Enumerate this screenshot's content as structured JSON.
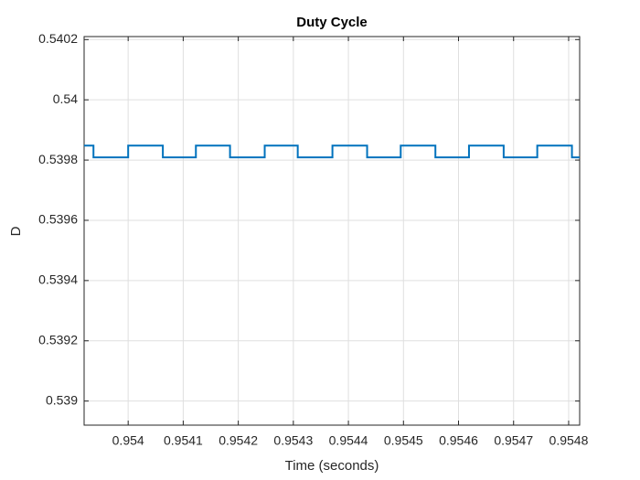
{
  "chart_data": {
    "type": "line",
    "title": "Duty Cycle",
    "x_label": "Time (seconds)",
    "y_label": "D",
    "x": [
      0.95392,
      0.953937,
      0.953937,
      0.954,
      0.954,
      0.954063,
      0.954063,
      0.954123,
      0.954123,
      0.954185,
      0.954185,
      0.954248,
      0.954248,
      0.954308,
      0.954308,
      0.954371,
      0.954371,
      0.954434,
      0.954434,
      0.954495,
      0.954495,
      0.954558,
      0.954558,
      0.954619,
      0.954619,
      0.954682,
      0.954682,
      0.954743,
      0.954743,
      0.954806,
      0.954806,
      0.95482
    ],
    "series": [
      {
        "name": "D",
        "color": "#0072bd",
        "values": [
          0.539848,
          0.539848,
          0.539809,
          0.539809,
          0.539848,
          0.539848,
          0.539809,
          0.539809,
          0.539848,
          0.539848,
          0.539809,
          0.539809,
          0.539848,
          0.539848,
          0.539809,
          0.539809,
          0.539848,
          0.539848,
          0.539809,
          0.539809,
          0.539848,
          0.539848,
          0.539809,
          0.539809,
          0.539848,
          0.539848,
          0.539809,
          0.539809,
          0.539848,
          0.539848,
          0.539809,
          0.539809
        ]
      }
    ],
    "xlim": [
      0.95392,
      0.95482
    ],
    "xticks": [
      0.954,
      0.9541,
      0.9542,
      0.9543,
      0.9544,
      0.9545,
      0.9546,
      0.9547,
      0.9548
    ],
    "ylim": [
      0.53892,
      0.54021
    ],
    "yticks": [
      0.539,
      0.5392,
      0.5394,
      0.5396,
      0.5398,
      0.54,
      0.5402
    ],
    "grid": true
  }
}
